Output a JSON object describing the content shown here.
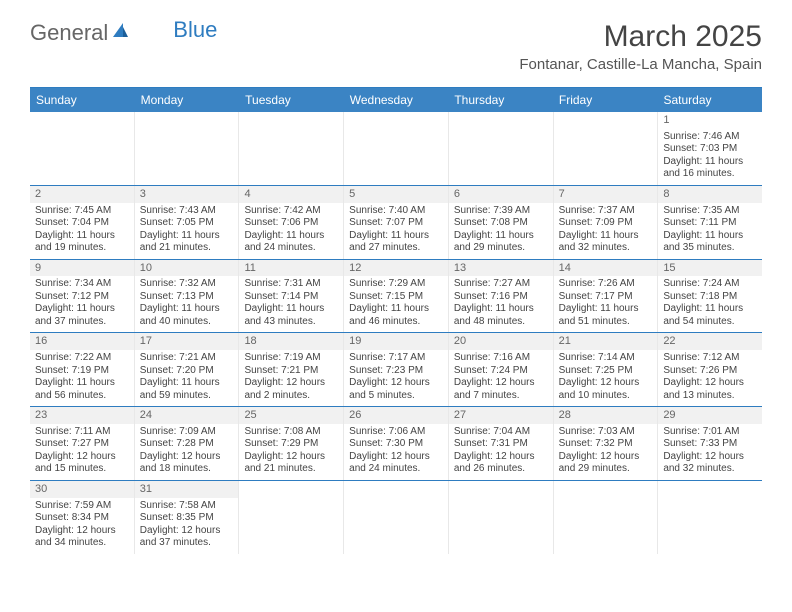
{
  "brand": {
    "general": "General",
    "blue": "Blue"
  },
  "title": "March 2025",
  "location": "Fontanar, Castille-La Mancha, Spain",
  "colors": {
    "header_bg": "#3b84c4",
    "header_text": "#ffffff",
    "rule": "#2e7cc0",
    "daynum_bg": "#f1f1f1",
    "text": "#444444"
  },
  "weekdays": [
    "Sunday",
    "Monday",
    "Tuesday",
    "Wednesday",
    "Thursday",
    "Friday",
    "Saturday"
  ],
  "weeks": [
    [
      null,
      null,
      null,
      null,
      null,
      null,
      {
        "n": "1",
        "sr": "Sunrise: 7:46 AM",
        "ss": "Sunset: 7:03 PM",
        "d1": "Daylight: 11 hours",
        "d2": "and 16 minutes.",
        "noshade": true
      }
    ],
    [
      {
        "n": "2",
        "sr": "Sunrise: 7:45 AM",
        "ss": "Sunset: 7:04 PM",
        "d1": "Daylight: 11 hours",
        "d2": "and 19 minutes."
      },
      {
        "n": "3",
        "sr": "Sunrise: 7:43 AM",
        "ss": "Sunset: 7:05 PM",
        "d1": "Daylight: 11 hours",
        "d2": "and 21 minutes."
      },
      {
        "n": "4",
        "sr": "Sunrise: 7:42 AM",
        "ss": "Sunset: 7:06 PM",
        "d1": "Daylight: 11 hours",
        "d2": "and 24 minutes."
      },
      {
        "n": "5",
        "sr": "Sunrise: 7:40 AM",
        "ss": "Sunset: 7:07 PM",
        "d1": "Daylight: 11 hours",
        "d2": "and 27 minutes."
      },
      {
        "n": "6",
        "sr": "Sunrise: 7:39 AM",
        "ss": "Sunset: 7:08 PM",
        "d1": "Daylight: 11 hours",
        "d2": "and 29 minutes."
      },
      {
        "n": "7",
        "sr": "Sunrise: 7:37 AM",
        "ss": "Sunset: 7:09 PM",
        "d1": "Daylight: 11 hours",
        "d2": "and 32 minutes."
      },
      {
        "n": "8",
        "sr": "Sunrise: 7:35 AM",
        "ss": "Sunset: 7:11 PM",
        "d1": "Daylight: 11 hours",
        "d2": "and 35 minutes."
      }
    ],
    [
      {
        "n": "9",
        "sr": "Sunrise: 7:34 AM",
        "ss": "Sunset: 7:12 PM",
        "d1": "Daylight: 11 hours",
        "d2": "and 37 minutes."
      },
      {
        "n": "10",
        "sr": "Sunrise: 7:32 AM",
        "ss": "Sunset: 7:13 PM",
        "d1": "Daylight: 11 hours",
        "d2": "and 40 minutes."
      },
      {
        "n": "11",
        "sr": "Sunrise: 7:31 AM",
        "ss": "Sunset: 7:14 PM",
        "d1": "Daylight: 11 hours",
        "d2": "and 43 minutes."
      },
      {
        "n": "12",
        "sr": "Sunrise: 7:29 AM",
        "ss": "Sunset: 7:15 PM",
        "d1": "Daylight: 11 hours",
        "d2": "and 46 minutes."
      },
      {
        "n": "13",
        "sr": "Sunrise: 7:27 AM",
        "ss": "Sunset: 7:16 PM",
        "d1": "Daylight: 11 hours",
        "d2": "and 48 minutes."
      },
      {
        "n": "14",
        "sr": "Sunrise: 7:26 AM",
        "ss": "Sunset: 7:17 PM",
        "d1": "Daylight: 11 hours",
        "d2": "and 51 minutes."
      },
      {
        "n": "15",
        "sr": "Sunrise: 7:24 AM",
        "ss": "Sunset: 7:18 PM",
        "d1": "Daylight: 11 hours",
        "d2": "and 54 minutes."
      }
    ],
    [
      {
        "n": "16",
        "sr": "Sunrise: 7:22 AM",
        "ss": "Sunset: 7:19 PM",
        "d1": "Daylight: 11 hours",
        "d2": "and 56 minutes."
      },
      {
        "n": "17",
        "sr": "Sunrise: 7:21 AM",
        "ss": "Sunset: 7:20 PM",
        "d1": "Daylight: 11 hours",
        "d2": "and 59 minutes."
      },
      {
        "n": "18",
        "sr": "Sunrise: 7:19 AM",
        "ss": "Sunset: 7:21 PM",
        "d1": "Daylight: 12 hours",
        "d2": "and 2 minutes."
      },
      {
        "n": "19",
        "sr": "Sunrise: 7:17 AM",
        "ss": "Sunset: 7:23 PM",
        "d1": "Daylight: 12 hours",
        "d2": "and 5 minutes."
      },
      {
        "n": "20",
        "sr": "Sunrise: 7:16 AM",
        "ss": "Sunset: 7:24 PM",
        "d1": "Daylight: 12 hours",
        "d2": "and 7 minutes."
      },
      {
        "n": "21",
        "sr": "Sunrise: 7:14 AM",
        "ss": "Sunset: 7:25 PM",
        "d1": "Daylight: 12 hours",
        "d2": "and 10 minutes."
      },
      {
        "n": "22",
        "sr": "Sunrise: 7:12 AM",
        "ss": "Sunset: 7:26 PM",
        "d1": "Daylight: 12 hours",
        "d2": "and 13 minutes."
      }
    ],
    [
      {
        "n": "23",
        "sr": "Sunrise: 7:11 AM",
        "ss": "Sunset: 7:27 PM",
        "d1": "Daylight: 12 hours",
        "d2": "and 15 minutes."
      },
      {
        "n": "24",
        "sr": "Sunrise: 7:09 AM",
        "ss": "Sunset: 7:28 PM",
        "d1": "Daylight: 12 hours",
        "d2": "and 18 minutes."
      },
      {
        "n": "25",
        "sr": "Sunrise: 7:08 AM",
        "ss": "Sunset: 7:29 PM",
        "d1": "Daylight: 12 hours",
        "d2": "and 21 minutes."
      },
      {
        "n": "26",
        "sr": "Sunrise: 7:06 AM",
        "ss": "Sunset: 7:30 PM",
        "d1": "Daylight: 12 hours",
        "d2": "and 24 minutes."
      },
      {
        "n": "27",
        "sr": "Sunrise: 7:04 AM",
        "ss": "Sunset: 7:31 PM",
        "d1": "Daylight: 12 hours",
        "d2": "and 26 minutes."
      },
      {
        "n": "28",
        "sr": "Sunrise: 7:03 AM",
        "ss": "Sunset: 7:32 PM",
        "d1": "Daylight: 12 hours",
        "d2": "and 29 minutes."
      },
      {
        "n": "29",
        "sr": "Sunrise: 7:01 AM",
        "ss": "Sunset: 7:33 PM",
        "d1": "Daylight: 12 hours",
        "d2": "and 32 minutes."
      }
    ],
    [
      {
        "n": "30",
        "sr": "Sunrise: 7:59 AM",
        "ss": "Sunset: 8:34 PM",
        "d1": "Daylight: 12 hours",
        "d2": "and 34 minutes."
      },
      {
        "n": "31",
        "sr": "Sunrise: 7:58 AM",
        "ss": "Sunset: 8:35 PM",
        "d1": "Daylight: 12 hours",
        "d2": "and 37 minutes."
      },
      null,
      null,
      null,
      null,
      null
    ]
  ]
}
